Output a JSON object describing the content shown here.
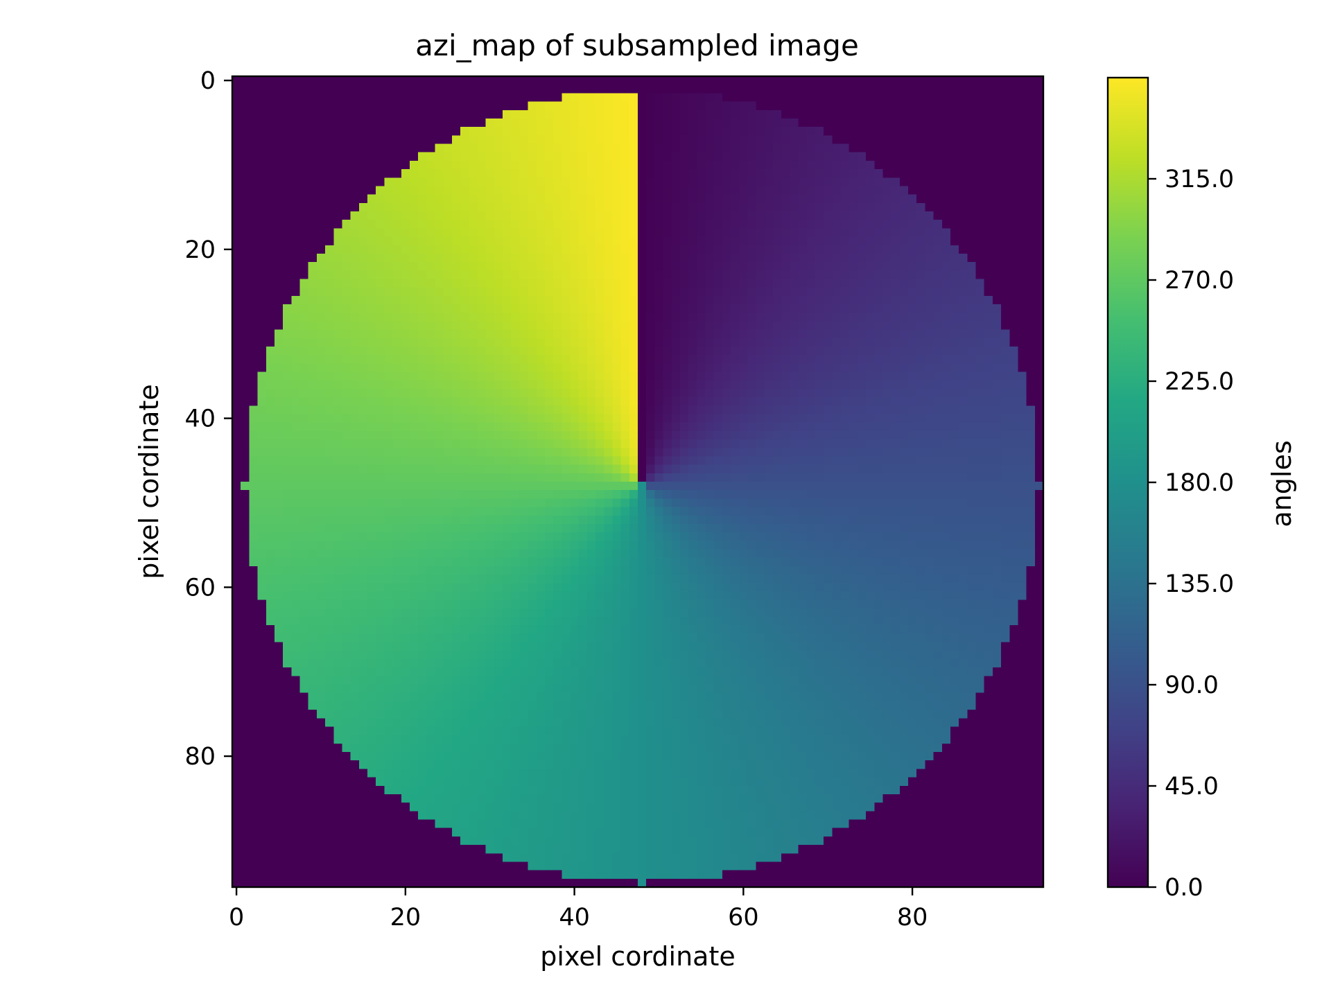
{
  "chart_data": {
    "type": "heatmap",
    "title": "azi_map of subsampled image",
    "xlabel": "pixel cordinate",
    "ylabel": "pixel cordinate",
    "xlim": [
      -0.5,
      95.5
    ],
    "ylim": [
      95.5,
      -0.5
    ],
    "x_ticks": [
      0,
      20,
      40,
      60,
      80
    ],
    "y_ticks": [
      0,
      20,
      40,
      60,
      80
    ],
    "image_size": [
      96,
      96
    ],
    "center": [
      48,
      48
    ],
    "radius": 47,
    "value_range": [
      0,
      360
    ],
    "description_of_values": "azimuth angle in degrees, 0 pointing up (low row index), increasing clockwise; 0 outside the disk",
    "colormap": "viridis",
    "colorbar": {
      "label": "angles",
      "range": [
        0,
        360
      ],
      "ticks": [
        0,
        45,
        90,
        135,
        180,
        225,
        270,
        315
      ],
      "tick_labels": [
        "0.0",
        "45.0",
        "90.0",
        "135.0",
        "180.0",
        "225.0",
        "270.0",
        "315.0"
      ]
    }
  }
}
